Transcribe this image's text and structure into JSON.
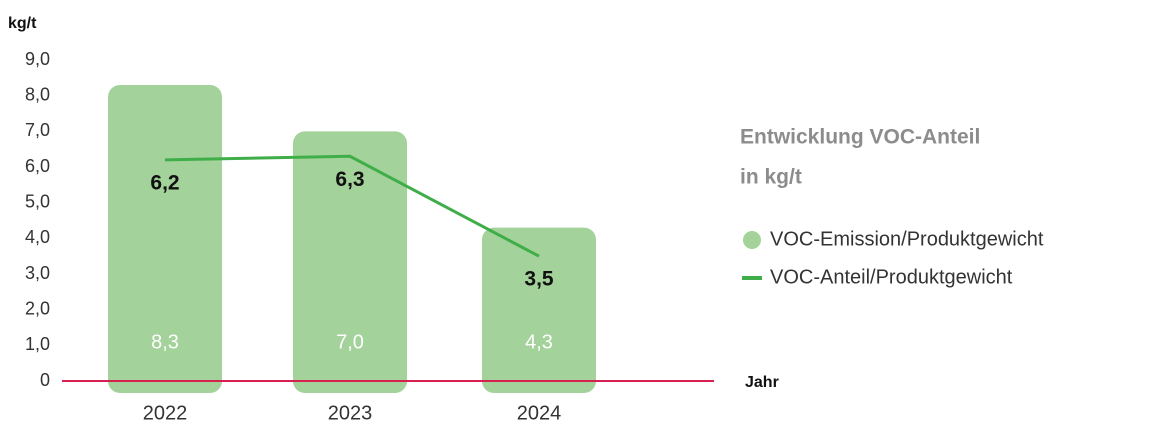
{
  "chart_data": {
    "type": "combo",
    "title": [
      "Entwicklung VOC-Anteil",
      "in kg/t"
    ],
    "y_label": "kg/t",
    "x_label": "Jahr",
    "categories": [
      "2022",
      "2023",
      "2024"
    ],
    "series": [
      {
        "name": "VOC-Emission/Produktgewicht",
        "type": "bar",
        "color": "#a3d29a",
        "values": [
          8.3,
          7.0,
          4.3
        ],
        "value_labels": [
          "8,3",
          "7,0",
          "4,3"
        ]
      },
      {
        "name": "VOC-Anteil/Produktgewicht",
        "type": "line",
        "color": "#3fae49",
        "values": [
          6.2,
          6.3,
          3.5
        ],
        "value_labels": [
          "6,2",
          "6,3",
          "3,5"
        ]
      }
    ],
    "ylim": [
      0,
      9
    ],
    "yticks": [
      0,
      {
        "value": 1,
        "label": "1,0"
      },
      {
        "value": 2,
        "label": "2,0"
      },
      {
        "value": 3,
        "label": "3,0"
      },
      {
        "value": 4,
        "label": "4,0"
      },
      {
        "value": 5,
        "label": "5,0"
      },
      {
        "value": 6,
        "label": "6,0"
      },
      {
        "value": 7,
        "label": "7,0"
      },
      {
        "value": 8,
        "label": "8,0"
      },
      {
        "value": 9,
        "label": "9,0"
      }
    ],
    "axis_color": "#d6204f"
  }
}
